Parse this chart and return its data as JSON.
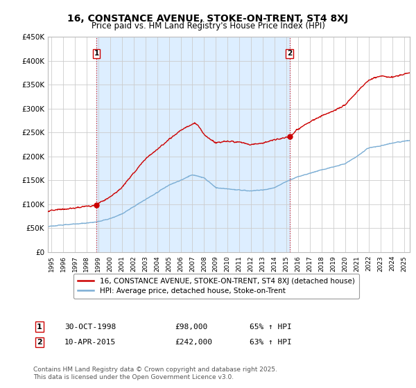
{
  "title": "16, CONSTANCE AVENUE, STOKE-ON-TRENT, ST4 8XJ",
  "subtitle": "Price paid vs. HM Land Registry's House Price Index (HPI)",
  "ylabel_ticks": [
    "£0",
    "£50K",
    "£100K",
    "£150K",
    "£200K",
    "£250K",
    "£300K",
    "£350K",
    "£400K",
    "£450K"
  ],
  "ytick_vals": [
    0,
    50000,
    100000,
    150000,
    200000,
    250000,
    300000,
    350000,
    400000,
    450000
  ],
  "ylim": [
    0,
    450000
  ],
  "xlim_start": 1994.7,
  "xlim_end": 2025.5,
  "sale1": {
    "date": 1998.83,
    "price": 98000,
    "label": "1",
    "hpi_pct": "65% ↑ HPI",
    "date_str": "30-OCT-1998",
    "price_str": "£98,000"
  },
  "sale2": {
    "date": 2015.27,
    "price": 242000,
    "label": "2",
    "hpi_pct": "63% ↑ HPI",
    "date_str": "10-APR-2015",
    "price_str": "£242,000"
  },
  "vline_color": "#cc0000",
  "vline_style": ":",
  "house_line_color": "#cc0000",
  "hpi_line_color": "#7aadd4",
  "fill_color": "#ddeeff",
  "legend_house": "16, CONSTANCE AVENUE, STOKE-ON-TRENT, ST4 8XJ (detached house)",
  "legend_hpi": "HPI: Average price, detached house, Stoke-on-Trent",
  "footer": "Contains HM Land Registry data © Crown copyright and database right 2025.\nThis data is licensed under the Open Government Licence v3.0.",
  "background_color": "#ffffff",
  "grid_color": "#cccccc",
  "title_fontsize": 10,
  "subtitle_fontsize": 8.5,
  "tick_fontsize": 7.5
}
